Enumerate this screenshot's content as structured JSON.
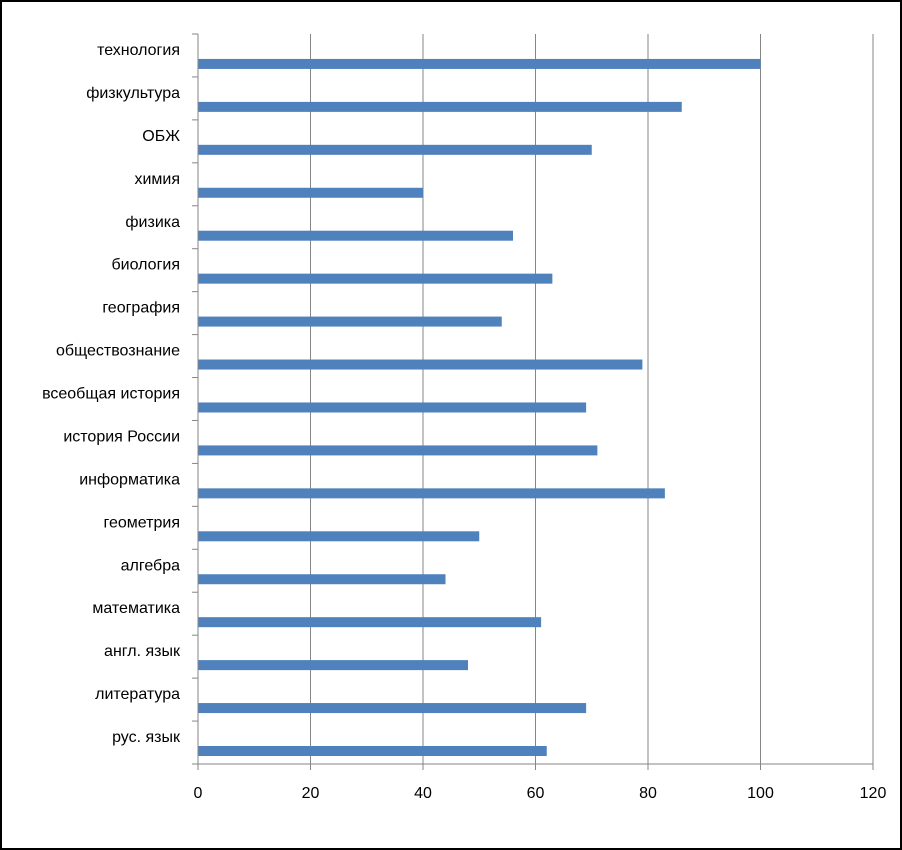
{
  "chart_data": {
    "type": "bar",
    "orientation": "horizontal",
    "categories": [
      "рус. язык",
      "литература",
      "англ. язык",
      "математика",
      "алгебра",
      "геометрия",
      "информатика",
      "история России",
      "всеобщая история",
      "обществознание",
      "география",
      "биология",
      "физика",
      "химия",
      "ОБЖ",
      "физкультура",
      "технология"
    ],
    "values": [
      62,
      69,
      48,
      61,
      44,
      50,
      83,
      71,
      69,
      79,
      54,
      63,
      56,
      40,
      70,
      86,
      100
    ],
    "title": "",
    "xlabel": "",
    "ylabel": "",
    "xlim": [
      0,
      120
    ],
    "xticks": [
      0,
      20,
      40,
      60,
      80,
      100,
      120
    ],
    "grid": "vertical",
    "legend": "none",
    "bar_color": "#4F81BD"
  }
}
